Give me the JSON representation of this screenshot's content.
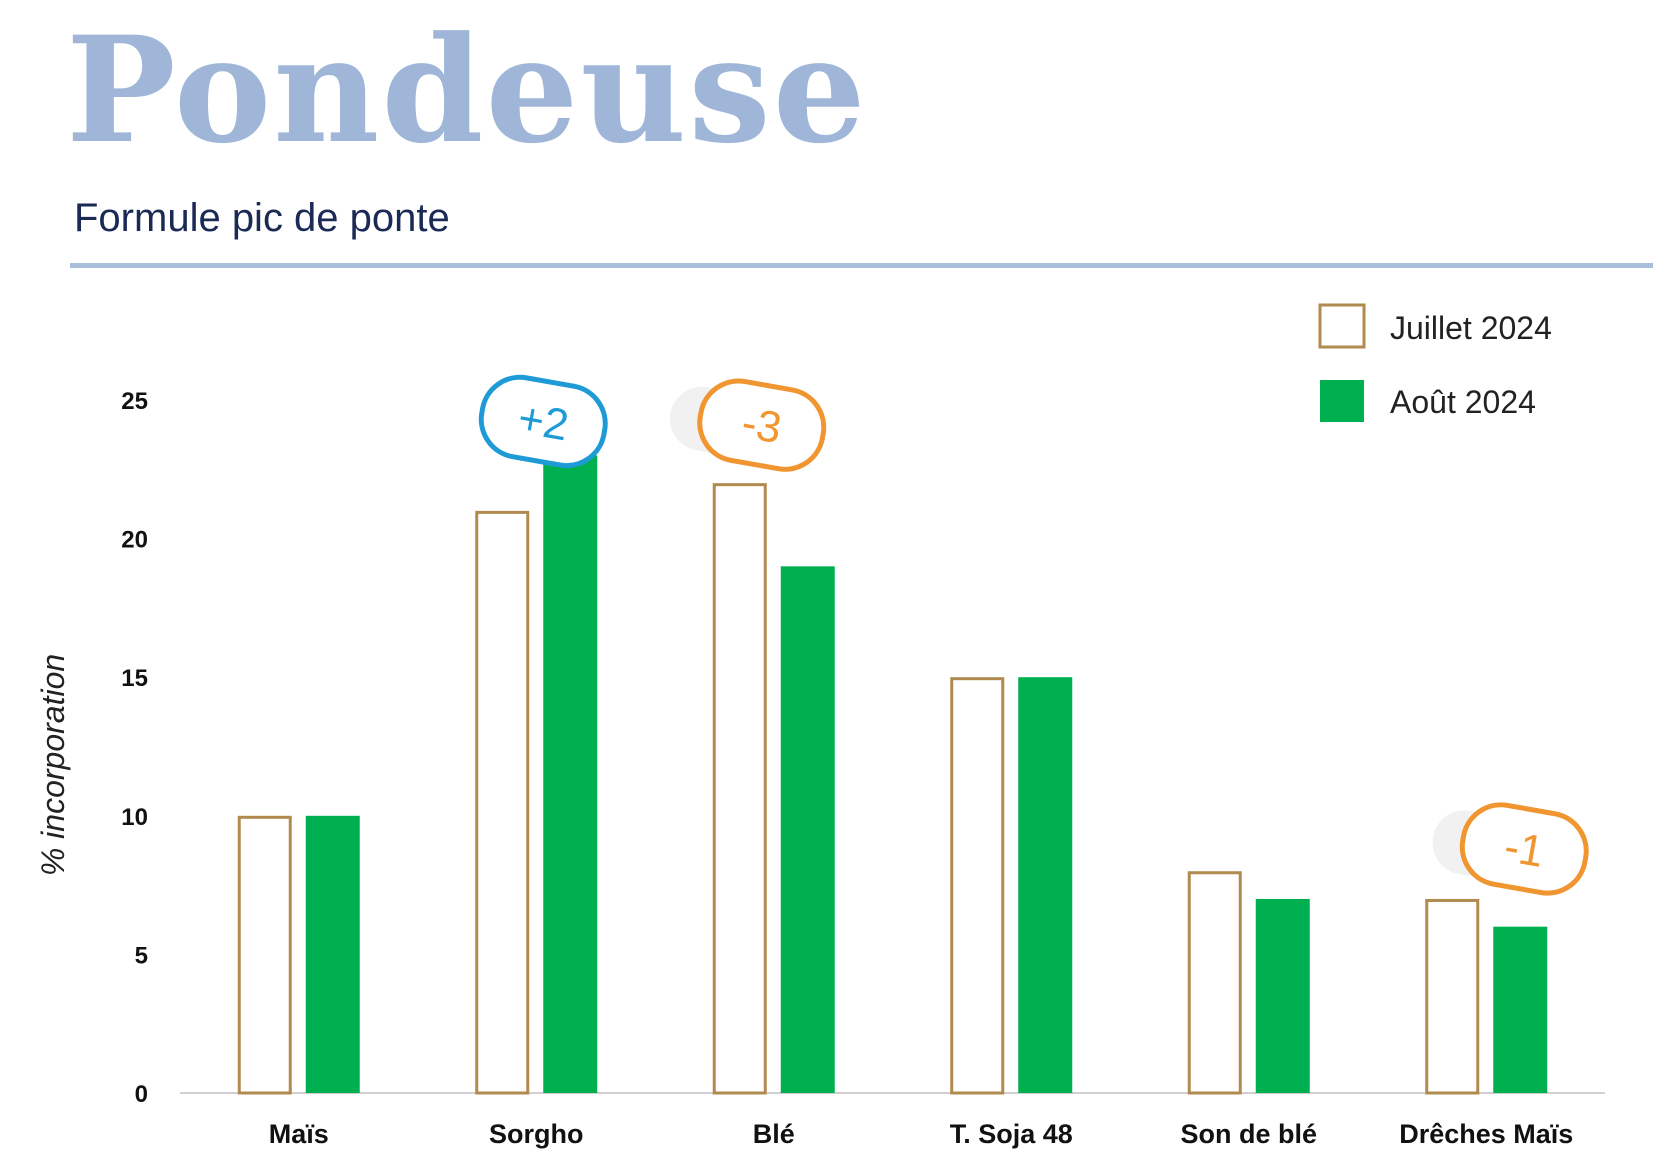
{
  "title": "Pondeuse",
  "subtitle": "Formule pic de ponte",
  "chart_data": {
    "type": "bar",
    "categories": [
      "Maïs",
      "Sorgho",
      "Blé",
      "T. Soja 48",
      "Son de blé",
      "Drêches Maïs"
    ],
    "series": [
      {
        "name": "Juillet 2024",
        "values": [
          10,
          21,
          22,
          15,
          8,
          7
        ],
        "style": "outline",
        "color": "#b08a4e"
      },
      {
        "name": "Août 2024",
        "values": [
          10,
          23,
          19,
          15,
          7,
          6
        ],
        "style": "filled",
        "color": "#00b050"
      }
    ],
    "ylabel": "% incorporation",
    "xlabel": "",
    "ylim": [
      0,
      25
    ],
    "yticks": [
      0,
      5,
      10,
      15,
      20,
      25
    ],
    "grid": false,
    "legend": "top-right",
    "annotations": [
      {
        "category": "Sorgho",
        "text": "+2",
        "color": "#1e9bd7"
      },
      {
        "category": "Blé",
        "text": "-3",
        "color": "#f0952f"
      },
      {
        "category": "Drêches Maïs",
        "text": "-1",
        "color": "#f0952f"
      }
    ]
  }
}
